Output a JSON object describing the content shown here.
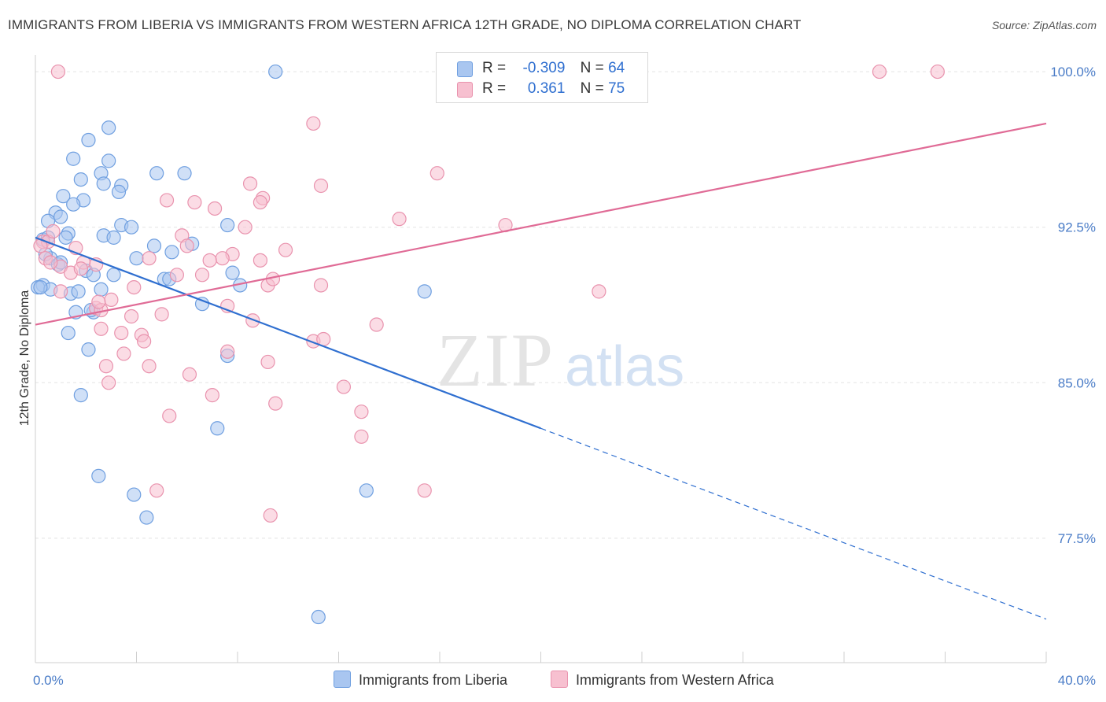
{
  "title": "IMMIGRANTS FROM LIBERIA VS IMMIGRANTS FROM WESTERN AFRICA 12TH GRADE, NO DIPLOMA CORRELATION CHART",
  "source": "Source: ZipAtlas.com",
  "watermark": {
    "zip": "ZIP",
    "atlas": "atlas"
  },
  "legend": {
    "rows": [
      {
        "r_label": "R =",
        "r_value": "-0.309",
        "n_label": "N =",
        "n_value": "64",
        "color": "#a9c6f0",
        "border": "#6f9fe0"
      },
      {
        "r_label": "R =",
        "r_value": "0.361",
        "n_label": "N =",
        "n_value": "75",
        "color": "#f7c0d0",
        "border": "#e993ae"
      }
    ]
  },
  "bottom_legend": [
    {
      "label": "Immigrants from Liberia",
      "color": "#a9c6f0",
      "border": "#6f9fe0"
    },
    {
      "label": "Immigrants from Western Africa",
      "color": "#f7c0d0",
      "border": "#e993ae"
    }
  ],
  "chart_data": {
    "type": "scatter",
    "xlabel": "",
    "ylabel": "12th Grade, No Diploma",
    "xlim": [
      0,
      40
    ],
    "ylim": [
      71.5,
      100.8
    ],
    "x_tick_labels": [
      "0.0%",
      "40.0%"
    ],
    "y_ticks": [
      77.5,
      85.0,
      92.5,
      100.0
    ],
    "y_tick_labels": [
      "77.5%",
      "85.0%",
      "92.5%",
      "100.0%"
    ],
    "grid": true,
    "legend_position": "top-center",
    "series": [
      {
        "name": "Immigrants from Liberia",
        "color": "#6f9fe0",
        "fill": "#a9c6f0",
        "trend": {
          "x": [
            0.0,
            20.0
          ],
          "y": [
            92.0,
            82.8
          ],
          "dashed_to": [
            40.0,
            73.6
          ],
          "color": "#2f6fd0"
        },
        "points": [
          [
            9.5,
            100.0
          ],
          [
            2.9,
            97.3
          ],
          [
            2.1,
            96.7
          ],
          [
            1.5,
            95.8
          ],
          [
            2.9,
            95.7
          ],
          [
            2.6,
            95.1
          ],
          [
            4.8,
            95.1
          ],
          [
            5.9,
            95.1
          ],
          [
            1.8,
            94.8
          ],
          [
            2.7,
            94.6
          ],
          [
            3.4,
            94.5
          ],
          [
            3.3,
            94.2
          ],
          [
            1.1,
            94.0
          ],
          [
            1.9,
            93.8
          ],
          [
            1.5,
            93.6
          ],
          [
            0.8,
            93.2
          ],
          [
            0.5,
            92.8
          ],
          [
            1.0,
            93.0
          ],
          [
            3.4,
            92.6
          ],
          [
            3.8,
            92.5
          ],
          [
            7.6,
            92.6
          ],
          [
            1.3,
            92.2
          ],
          [
            0.3,
            91.9
          ],
          [
            2.7,
            92.1
          ],
          [
            3.1,
            92.0
          ],
          [
            1.2,
            92.0
          ],
          [
            4.7,
            91.6
          ],
          [
            6.2,
            91.7
          ],
          [
            5.4,
            91.3
          ],
          [
            0.6,
            91.0
          ],
          [
            4.0,
            91.0
          ],
          [
            0.9,
            90.7
          ],
          [
            2.0,
            90.4
          ],
          [
            2.3,
            90.2
          ],
          [
            3.1,
            90.2
          ],
          [
            7.8,
            90.3
          ],
          [
            5.1,
            90.0
          ],
          [
            5.3,
            90.0
          ],
          [
            0.3,
            89.7
          ],
          [
            0.1,
            89.6
          ],
          [
            0.6,
            89.5
          ],
          [
            2.6,
            89.5
          ],
          [
            8.1,
            89.7
          ],
          [
            15.4,
            89.4
          ],
          [
            1.4,
            89.3
          ],
          [
            1.7,
            89.4
          ],
          [
            6.6,
            88.8
          ],
          [
            1.6,
            88.4
          ],
          [
            2.3,
            88.4
          ],
          [
            1.3,
            87.4
          ],
          [
            2.1,
            86.6
          ],
          [
            7.6,
            86.3
          ],
          [
            1.8,
            84.4
          ],
          [
            7.2,
            82.8
          ],
          [
            2.5,
            80.5
          ],
          [
            3.9,
            79.6
          ],
          [
            13.1,
            79.8
          ],
          [
            4.4,
            78.5
          ],
          [
            11.2,
            73.7
          ],
          [
            0.2,
            89.6
          ],
          [
            0.4,
            91.2
          ],
          [
            1.0,
            90.8
          ],
          [
            0.5,
            92.0
          ],
          [
            2.2,
            88.5
          ]
        ]
      },
      {
        "name": "Immigrants from Western Africa",
        "color": "#e993ae",
        "fill": "#f7c0d0",
        "trend": {
          "x": [
            0.0,
            40.0
          ],
          "y": [
            87.8,
            97.5
          ],
          "color": "#e06b96"
        },
        "points": [
          [
            0.9,
            100.0
          ],
          [
            16.5,
            100.0
          ],
          [
            33.4,
            100.0
          ],
          [
            35.7,
            100.0
          ],
          [
            11.0,
            97.5
          ],
          [
            15.9,
            95.1
          ],
          [
            8.5,
            94.6
          ],
          [
            11.3,
            94.5
          ],
          [
            5.2,
            93.8
          ],
          [
            9.0,
            93.9
          ],
          [
            6.3,
            93.7
          ],
          [
            8.9,
            93.7
          ],
          [
            7.1,
            93.4
          ],
          [
            14.4,
            92.9
          ],
          [
            18.6,
            92.6
          ],
          [
            8.3,
            92.5
          ],
          [
            5.8,
            92.1
          ],
          [
            0.3,
            91.8
          ],
          [
            0.5,
            91.8
          ],
          [
            6.0,
            91.6
          ],
          [
            1.6,
            91.5
          ],
          [
            7.8,
            91.2
          ],
          [
            9.9,
            91.4
          ],
          [
            7.4,
            91.0
          ],
          [
            4.5,
            91.0
          ],
          [
            8.9,
            90.9
          ],
          [
            2.4,
            90.7
          ],
          [
            1.0,
            90.6
          ],
          [
            1.4,
            90.3
          ],
          [
            6.6,
            90.2
          ],
          [
            5.6,
            90.2
          ],
          [
            9.2,
            89.7
          ],
          [
            11.3,
            89.7
          ],
          [
            3.9,
            89.6
          ],
          [
            22.3,
            89.4
          ],
          [
            1.0,
            89.4
          ],
          [
            2.4,
            88.6
          ],
          [
            2.6,
            88.5
          ],
          [
            7.6,
            88.7
          ],
          [
            5.0,
            88.3
          ],
          [
            3.8,
            88.2
          ],
          [
            8.6,
            88.0
          ],
          [
            13.5,
            87.8
          ],
          [
            3.4,
            87.4
          ],
          [
            4.2,
            87.3
          ],
          [
            2.6,
            87.6
          ],
          [
            11.0,
            87.0
          ],
          [
            11.4,
            87.1
          ],
          [
            7.6,
            86.5
          ],
          [
            3.5,
            86.4
          ],
          [
            9.2,
            86.0
          ],
          [
            2.8,
            85.8
          ],
          [
            4.5,
            85.8
          ],
          [
            6.1,
            85.4
          ],
          [
            2.9,
            85.0
          ],
          [
            12.2,
            84.8
          ],
          [
            7.0,
            84.4
          ],
          [
            9.5,
            84.0
          ],
          [
            12.9,
            83.6
          ],
          [
            5.3,
            83.4
          ],
          [
            12.9,
            82.4
          ],
          [
            4.8,
            79.8
          ],
          [
            15.4,
            79.8
          ],
          [
            9.3,
            78.6
          ],
          [
            0.4,
            91.0
          ],
          [
            0.6,
            90.8
          ],
          [
            1.9,
            90.8
          ],
          [
            0.2,
            91.6
          ],
          [
            3.0,
            89.0
          ],
          [
            6.9,
            90.9
          ],
          [
            9.4,
            90.0
          ],
          [
            0.7,
            92.3
          ],
          [
            2.5,
            88.9
          ],
          [
            1.8,
            90.5
          ],
          [
            4.3,
            87.0
          ]
        ]
      }
    ]
  }
}
